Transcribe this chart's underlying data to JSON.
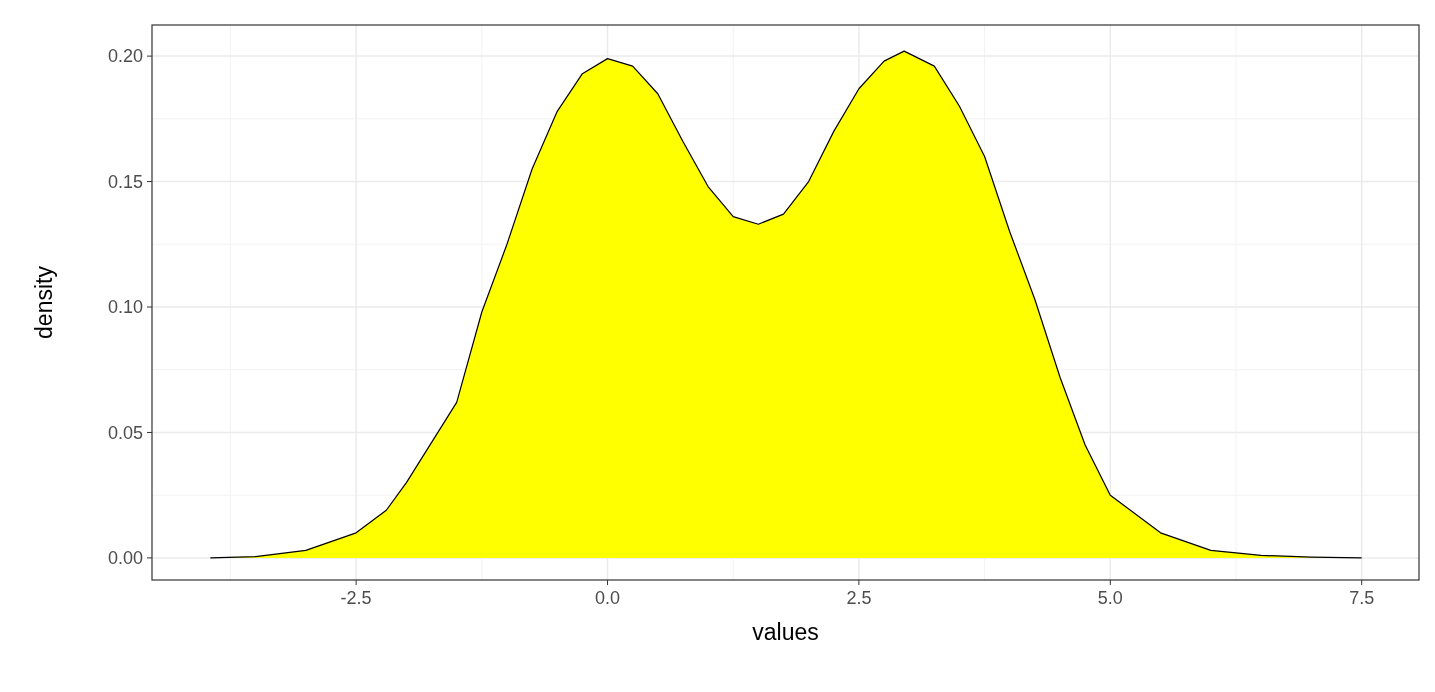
{
  "chart_data": {
    "type": "area",
    "xlabel": "values",
    "ylabel": "density",
    "xlim": [
      -4.53,
      8.07
    ],
    "ylim": [
      -0.0088,
      0.2124
    ],
    "xticks": [
      {
        "value": -2.5,
        "label": "-2.5"
      },
      {
        "value": 0,
        "label": "0.0"
      },
      {
        "value": 2.5,
        "label": "2.5"
      },
      {
        "value": 5,
        "label": "5.0"
      },
      {
        "value": 7.5,
        "label": "7.5"
      }
    ],
    "yticks": [
      {
        "value": 0,
        "label": "0.00"
      },
      {
        "value": 0.05,
        "label": "0.05"
      },
      {
        "value": 0.1,
        "label": "0.10"
      },
      {
        "value": 0.15,
        "label": "0.15"
      },
      {
        "value": 0.2,
        "label": "0.20"
      }
    ],
    "grid": true,
    "x": [
      -3.95,
      -3.5,
      -3,
      -2.5,
      -2.2,
      -2,
      -1.5,
      -1.25,
      -1,
      -0.75,
      -0.5,
      -0.25,
      0,
      0.25,
      0.5,
      0.75,
      1,
      1.25,
      1.5,
      1.75,
      2,
      2.25,
      2.5,
      2.75,
      2.95,
      3.25,
      3.5,
      3.75,
      4,
      4.25,
      4.5,
      4.75,
      5,
      5.5,
      6,
      6.5,
      7,
      7.5
    ],
    "series": [
      {
        "color": "#ffff00",
        "values": [
          0,
          0.0005,
          0.003,
          0.01,
          0.019,
          0.03,
          0.062,
          0.098,
          0.125,
          0.155,
          0.178,
          0.193,
          0.199,
          0.196,
          0.185,
          0.166,
          0.148,
          0.136,
          0.133,
          0.137,
          0.15,
          0.17,
          0.187,
          0.198,
          0.202,
          0.196,
          0.18,
          0.16,
          0.13,
          0.103,
          0.072,
          0.045,
          0.025,
          0.01,
          0.003,
          0.001,
          0.0003,
          0
        ]
      }
    ]
  }
}
